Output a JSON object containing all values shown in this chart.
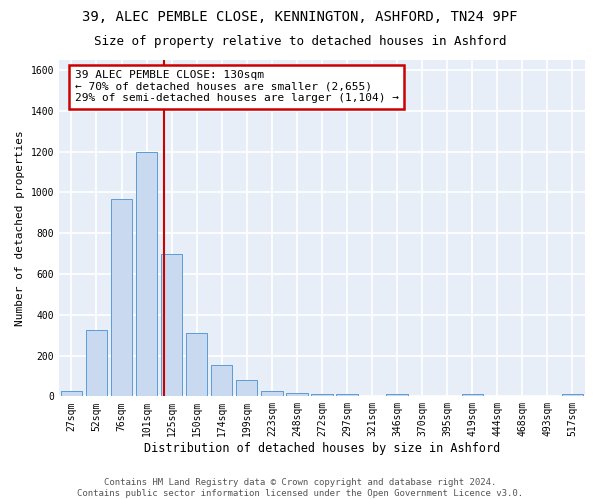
{
  "title1": "39, ALEC PEMBLE CLOSE, KENNINGTON, ASHFORD, TN24 9PF",
  "title2": "Size of property relative to detached houses in Ashford",
  "xlabel": "Distribution of detached houses by size in Ashford",
  "ylabel": "Number of detached properties",
  "bar_labels": [
    "27sqm",
    "52sqm",
    "76sqm",
    "101sqm",
    "125sqm",
    "150sqm",
    "174sqm",
    "199sqm",
    "223sqm",
    "248sqm",
    "272sqm",
    "297sqm",
    "321sqm",
    "346sqm",
    "370sqm",
    "395sqm",
    "419sqm",
    "444sqm",
    "468sqm",
    "493sqm",
    "517sqm"
  ],
  "bar_values": [
    25,
    325,
    970,
    1200,
    700,
    310,
    155,
    80,
    25,
    15,
    10,
    10,
    0,
    10,
    0,
    0,
    10,
    0,
    0,
    0,
    10
  ],
  "bar_color": "#c9d9f0",
  "bar_edgecolor": "#5b9bd5",
  "annotation_text": "39 ALEC PEMBLE CLOSE: 130sqm\n← 70% of detached houses are smaller (2,655)\n29% of semi-detached houses are larger (1,104) →",
  "annotation_box_color": "#ffffff",
  "annotation_box_edgecolor": "#cc0000",
  "vline_color": "#cc0000",
  "ylim": [
    0,
    1650
  ],
  "yticks": [
    0,
    200,
    400,
    600,
    800,
    1000,
    1200,
    1400,
    1600
  ],
  "footnote": "Contains HM Land Registry data © Crown copyright and database right 2024.\nContains public sector information licensed under the Open Government Licence v3.0.",
  "bg_color": "#e8eef8",
  "grid_color": "#ffffff",
  "fig_bg_color": "#ffffff",
  "title1_fontsize": 10,
  "title2_fontsize": 9,
  "xlabel_fontsize": 8.5,
  "ylabel_fontsize": 8,
  "tick_fontsize": 7,
  "annotation_fontsize": 8,
  "footnote_fontsize": 6.5
}
